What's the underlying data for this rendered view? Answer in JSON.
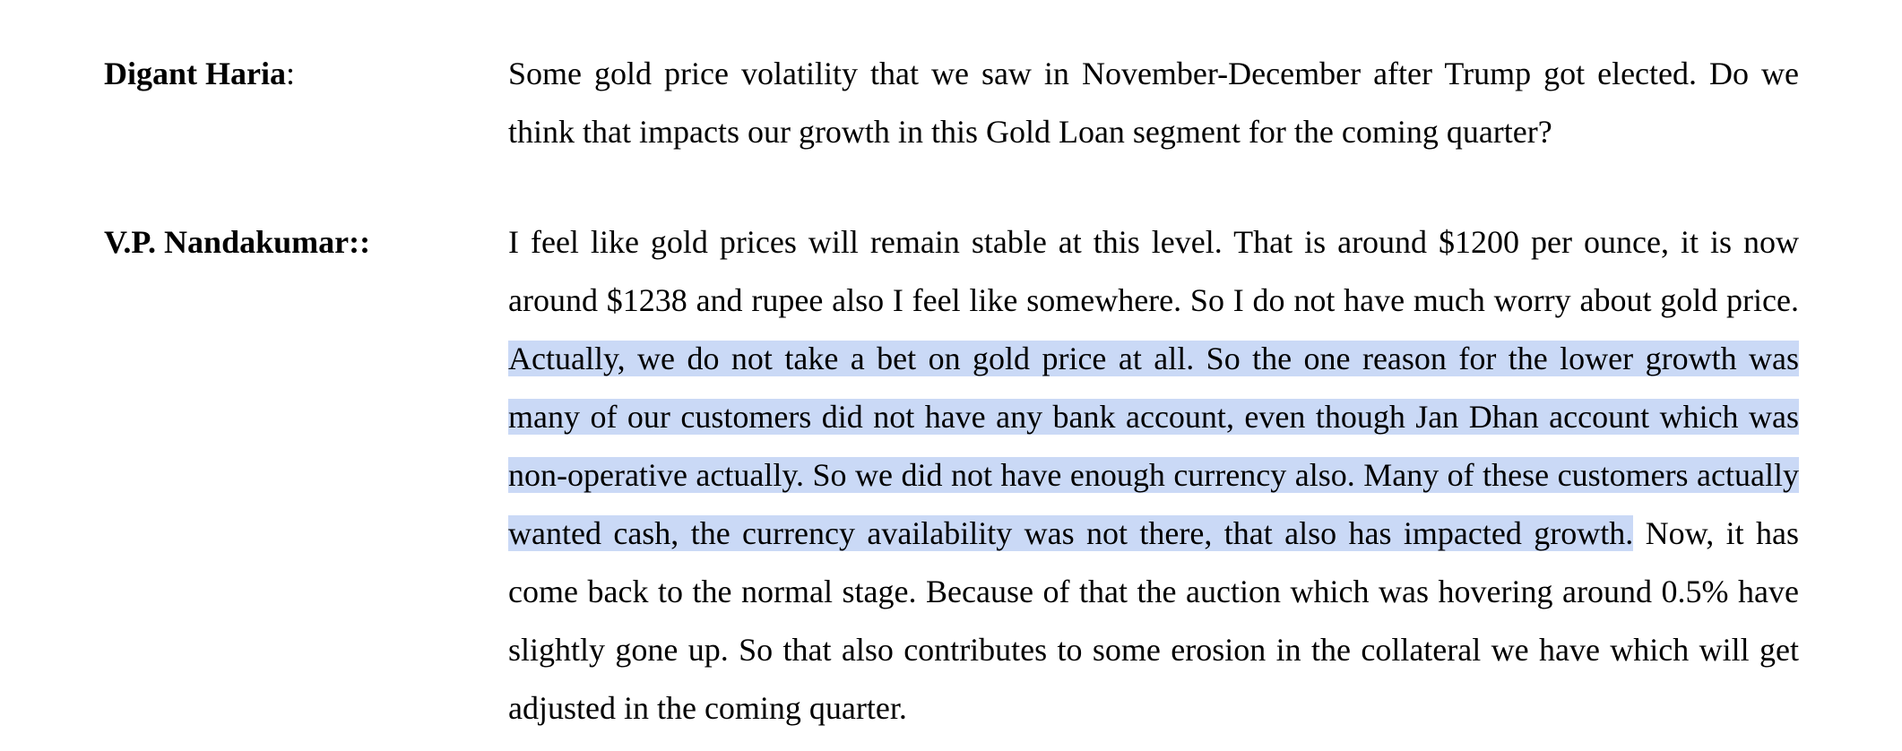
{
  "entries": [
    {
      "speaker_name": "Digant Haria",
      "speaker_suffix": ":",
      "text": "Some gold price volatility that we saw in November-December after Trump got elected. Do we think that impacts our growth in this Gold Loan segment for the coming quarter?"
    },
    {
      "speaker_name": "V.P. Nandakumar::",
      "speaker_suffix": "",
      "text_before": "I feel like gold prices will remain stable at this level. That is around $1200 per ounce, it is now around $1238 and rupee also I feel like somewhere. So I do not have much worry about gold price. ",
      "text_selected": "Actually, we do not take a bet on gold price at all. So the one reason for the lower growth was many of our customers did not have any bank account, even though Jan Dhan account which was non-operative actually. So we did not have enough currency also. Many of these customers actually wanted cash, the currency availability was not there, that also has impacted growth.",
      "text_after": " Now, it has come back to the normal stage. Because of that the auction which was hovering around 0.5% have slightly gone up. So that also contributes to some erosion in the collateral we have which will get adjusted in the coming quarter."
    }
  ],
  "colors": {
    "selection_highlight": "#cad9f6",
    "text": "#000000",
    "background": "#ffffff"
  }
}
